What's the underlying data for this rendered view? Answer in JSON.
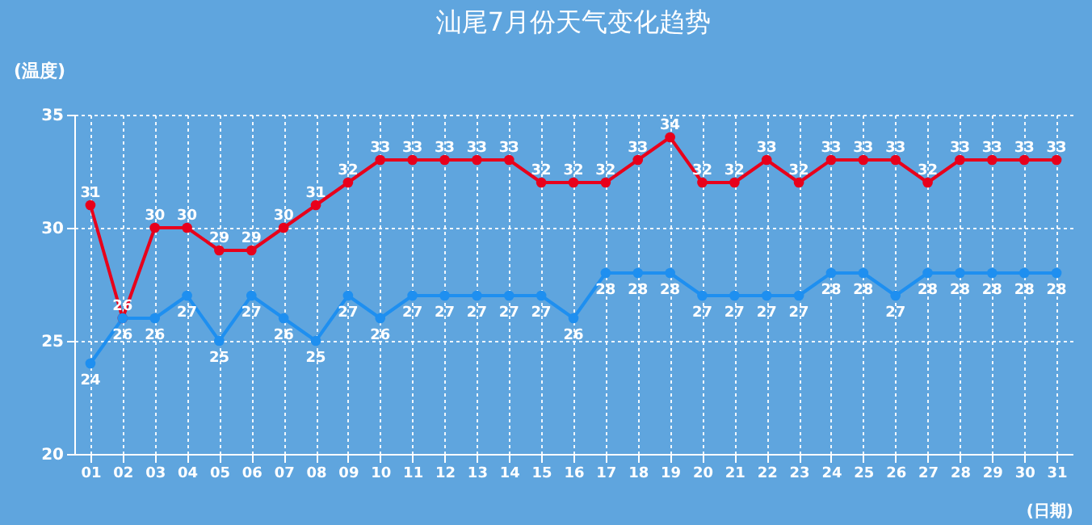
{
  "chart_data": {
    "type": "line",
    "title": "汕尾7月份天气变化趋势",
    "xlabel": "(日期)",
    "ylabel": "(温度)",
    "categories": [
      "01",
      "02",
      "03",
      "04",
      "05",
      "06",
      "07",
      "08",
      "09",
      "10",
      "11",
      "12",
      "13",
      "14",
      "15",
      "16",
      "17",
      "18",
      "19",
      "20",
      "21",
      "22",
      "23",
      "24",
      "25",
      "26",
      "27",
      "28",
      "29",
      "30",
      "31"
    ],
    "series": [
      {
        "color": "#e8001b",
        "values": [
          31,
          26,
          30,
          30,
          29,
          29,
          30,
          31,
          32,
          33,
          33,
          33,
          33,
          33,
          32,
          32,
          32,
          33,
          34,
          32,
          32,
          33,
          32,
          33,
          33,
          33,
          32,
          33,
          33,
          33,
          33
        ]
      },
      {
        "color": "#1e8ff0",
        "values": [
          24,
          26,
          26,
          27,
          25,
          27,
          26,
          25,
          27,
          26,
          27,
          27,
          27,
          27,
          27,
          26,
          28,
          28,
          28,
          27,
          27,
          27,
          27,
          28,
          28,
          27,
          28,
          28,
          28,
          28,
          28
        ]
      }
    ],
    "ylim": [
      20,
      35
    ],
    "yticks": [
      20,
      25,
      30,
      35
    ],
    "grid": true,
    "marker": "circle",
    "line_style": "solid",
    "data_labels": true,
    "legend": false
  }
}
